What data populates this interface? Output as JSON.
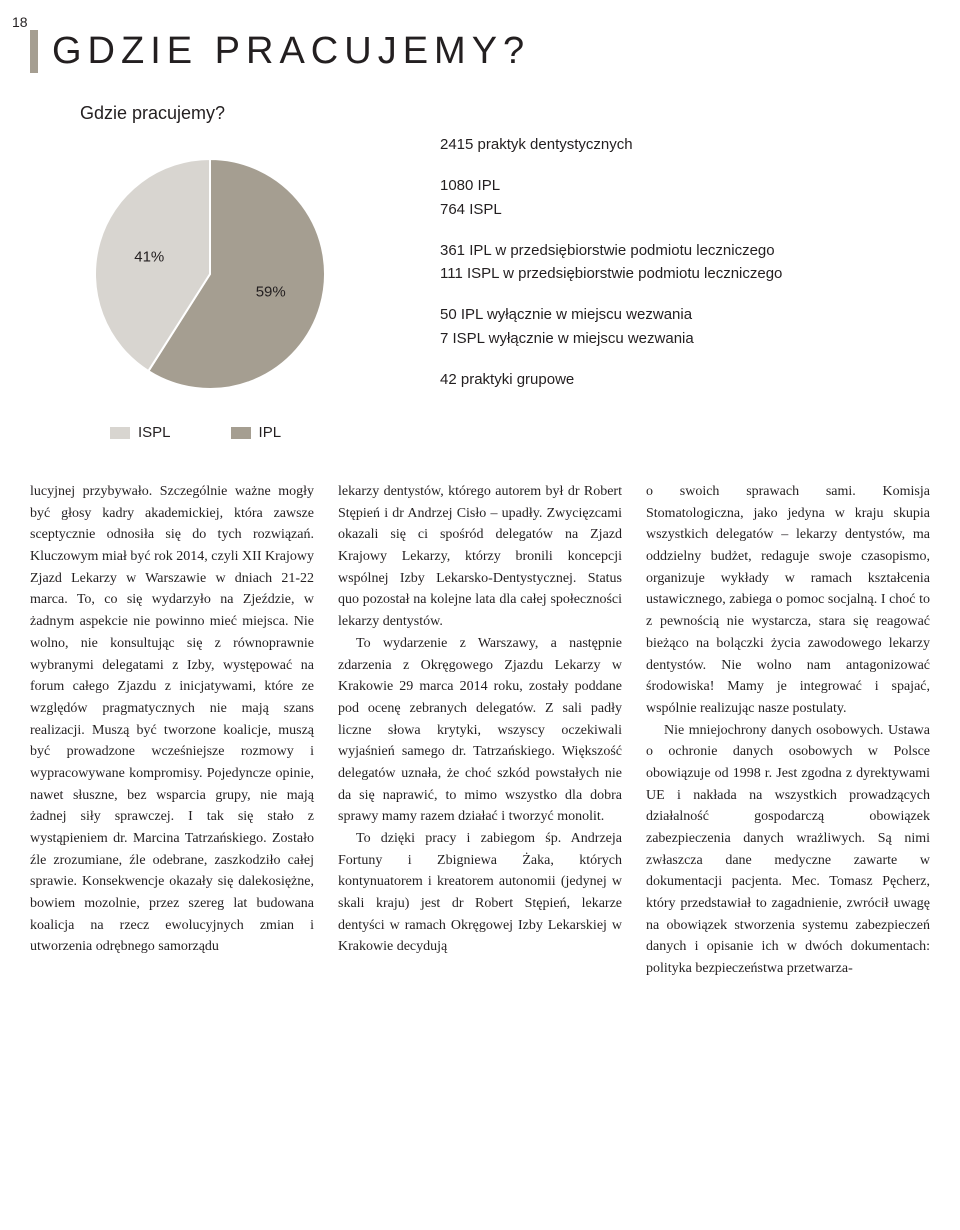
{
  "page_number": "18",
  "main_title": "GDZIE PRACUJEMY?",
  "chart": {
    "subtitle": "Gdzie pracujemy?",
    "type": "pie",
    "slices": [
      {
        "label": "41%",
        "value": 41,
        "color": "#d8d5d0"
      },
      {
        "label": "59%",
        "value": 59,
        "color": "#a59e91"
      }
    ],
    "legend": [
      {
        "label": "ISPL",
        "swatch": "#d8d5d0"
      },
      {
        "label": "IPL",
        "swatch": "#a59e91"
      }
    ],
    "pie_radius": 115,
    "label_fontsize": 15,
    "background_color": "#ffffff"
  },
  "stats": {
    "heading": "2415 praktyk dentystycznych",
    "group1": [
      "1080 IPL",
      "764 ISPL"
    ],
    "group2": [
      "361 IPL w przedsiębiorstwie podmiotu leczniczego",
      "111 ISPL w przedsiębiorstwie podmiotu leczniczego"
    ],
    "group3": [
      "50 IPL wyłącznie w miejscu wezwania",
      "7 ISPL wyłącznie w miejscu wezwania"
    ],
    "group4": [
      "42 praktyki grupowe"
    ]
  },
  "body_text": {
    "col1": "lucyjnej przybywało. Szczególnie ważne mogły być głosy kadry akademickiej, która zawsze sceptycznie odnosiła się do tych rozwiązań. Kluczowym miał być rok 2014, czyli XII Krajowy Zjazd Lekarzy w Warszawie w dniach 21-22 marca. To, co się wydarzyło na Zjeździe, w żadnym aspekcie nie powinno mieć miejsca. Nie wolno, nie konsultując się z równoprawnie wybranymi delegatami z Izby, występować na forum całego Zjazdu z inicjatywami, które ze względów pragmatycznych nie mają szans realizacji. Muszą być tworzone koalicje, muszą być prowadzone wcześniejsze rozmowy i wypracowywane kompromisy. Pojedyncze opinie, nawet słuszne, bez wsparcia grupy, nie mają żadnej siły sprawczej. I tak się stało z wystąpieniem dr. Marcina Tatrzańskiego. Zostało źle zrozumiane, źle odebrane, zaszkodziło całej sprawie. Konsekwencje okazały się dalekosiężne, bowiem mozolnie, przez szereg lat budowana koalicja na rzecz ewolucyjnych zmian i utworzenia odrębnego samorządu",
    "col2a": "lekarzy dentystów, którego autorem był dr Robert Stępień i dr Andrzej Cisło – upadły. Zwycięzcami okazali się ci spośród delegatów na Zjazd Krajowy Lekarzy, którzy bronili koncepcji wspólnej Izby Lekarsko-Dentystycznej. Status quo pozostał na kolejne lata dla całej społeczności lekarzy dentystów.",
    "col2b": "To wydarzenie z Warszawy, a następnie zdarzenia z Okręgowego Zjazdu Lekarzy w Krakowie 29 marca 2014 roku, zostały poddane pod ocenę zebranych delegatów. Z sali padły liczne słowa krytyki, wszyscy oczekiwali wyjaśnień samego dr. Tatrzańskiego. Większość delegatów uznała, że choć szkód powstałych nie da się naprawić, to mimo wszystko dla dobra sprawy mamy razem działać i tworzyć monolit.",
    "col2c": "To dzięki pracy i zabiegom śp. Andrzeja Fortuny i Zbigniewa Żaka, których kontynuatorem i kreatorem autonomii (jedynej w skali kraju) jest dr Robert Stępień, lekarze dentyści w ramach Okręgowej Izby Lekarskiej w Krakowie decydują",
    "col3a": "o swoich sprawach sami. Komisja Stomatologiczna, jako jedyna w kraju skupia wszystkich delegatów – lekarzy dentystów, ma oddzielny budżet, redaguje swoje czasopismo, organizuje wykłady w ramach kształcenia ustawicznego, zabiega o pomoc socjalną. I choć to z pewnością nie wystarcza, stara się reagować bieżąco na bolączki życia zawodowego lekarzy dentystów. Nie wolno nam antagonizować środowiska! Mamy je integrować i spajać, wspólnie realizując nasze postulaty.",
    "col3b": "Nie mniejochrony danych osobowych. Ustawa o ochronie danych osobowych w Polsce obowiązuje od 1998 r. Jest zgodna z dyrektywami UE i nakłada na wszystkich prowadzących działalność gospodarczą obowiązek zabezpieczenia danych wrażliwych. Są nimi zwłaszcza dane medyczne zawarte w dokumentacji pacjenta. Mec. Tomasz Pęcherz, który przedstawiał to zagadnienie, zwrócił uwagę na obowiązek stworzenia systemu zabezpieczeń danych i opisanie ich w dwóch dokumentach: polityka bezpieczeństwa przetwarza-"
  },
  "accent_color": "#a59e91"
}
